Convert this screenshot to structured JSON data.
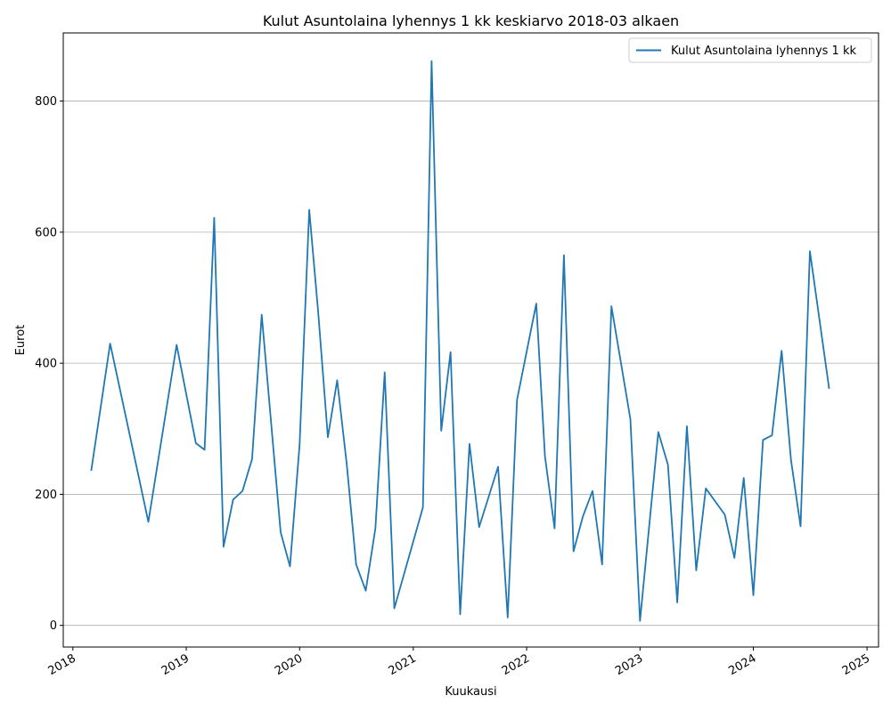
{
  "chart_data": {
    "type": "line",
    "title": "Kulut Asuntolaina lyhennys 1 kk keskiarvo 2018-03 alkaen",
    "xlabel": "Kuukausi",
    "ylabel": "Eurot",
    "xlim": [
      "2017-12-01",
      "2025-02-07"
    ],
    "ylim": [
      -33,
      904
    ],
    "x_ticks": [
      "2018",
      "2019",
      "2020",
      "2021",
      "2022",
      "2023",
      "2024",
      "2025"
    ],
    "y_ticks": [
      0,
      200,
      400,
      600,
      800
    ],
    "grid": "horizontal",
    "legend_position": "top-right",
    "line_color": "#1f77b4",
    "series": [
      {
        "name": "Kulut Asuntolaina lyhennys 1 kk",
        "x": [
          "2018-03",
          "2018-05",
          "2018-09",
          "2018-12",
          "2019-02",
          "2019-03",
          "2019-04",
          "2019-05",
          "2019-06",
          "2019-07",
          "2019-08",
          "2019-09",
          "2019-11",
          "2019-12",
          "2020-01",
          "2020-02",
          "2020-03",
          "2020-04",
          "2020-05",
          "2020-06",
          "2020-07",
          "2020-08",
          "2020-09",
          "2020-10",
          "2020-11",
          "2021-02",
          "2021-03",
          "2021-04",
          "2021-05",
          "2021-06",
          "2021-07",
          "2021-08",
          "2021-10",
          "2021-11",
          "2021-12",
          "2022-02",
          "2022-03",
          "2022-04",
          "2022-05",
          "2022-06",
          "2022-07",
          "2022-08",
          "2022-09",
          "2022-10",
          "2022-12",
          "2023-01",
          "2023-03",
          "2023-04",
          "2023-05",
          "2023-06",
          "2023-07",
          "2023-08",
          "2023-10",
          "2023-11",
          "2023-12",
          "2024-01",
          "2024-02",
          "2024-03",
          "2024-04",
          "2024-05",
          "2024-06",
          "2024-07",
          "2024-09"
        ],
        "values": [
          236,
          430,
          158,
          428,
          278,
          268,
          622,
          120,
          192,
          205,
          254,
          474,
          142,
          90,
          276,
          634,
          477,
          287,
          374,
          245,
          93,
          53,
          148,
          386,
          26,
          180,
          861,
          297,
          417,
          17,
          277,
          150,
          242,
          12,
          344,
          491,
          258,
          148,
          565,
          113,
          166,
          205,
          93,
          487,
          315,
          7,
          295,
          245,
          35,
          304,
          84,
          209,
          169,
          103,
          225,
          46,
          283,
          290,
          419,
          253,
          151,
          571,
          361
        ]
      }
    ]
  }
}
